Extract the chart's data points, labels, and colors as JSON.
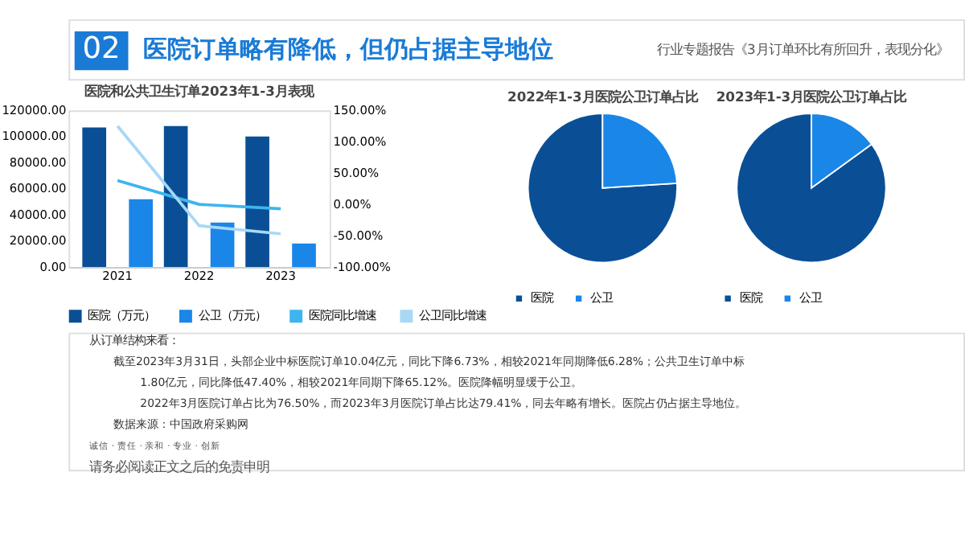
{
  "chart_data": [
    {
      "type": "bar",
      "title": "医院和公共卫生订单2023年1-3月表现",
      "categories": [
        "2021",
        "2022",
        "2023"
      ],
      "series": [
        {
          "name": "医院（万元）",
          "color": "#0a4f96",
          "values": [
            107000,
            108000,
            100000
          ]
        },
        {
          "name": "公卫（万元）",
          "color": "#1a86e8",
          "values": [
            52000,
            34000,
            18000
          ]
        },
        {
          "name": "医院同比增速",
          "color": "#3db5ee",
          "type": "line",
          "axis": "y2",
          "values": [
            38,
            0,
            -7
          ]
        },
        {
          "name": "公卫同比增速",
          "color": "#a8d8f6",
          "type": "line",
          "axis": "y2",
          "values": [
            125,
            -34,
            -47
          ]
        }
      ],
      "ylim": [
        0,
        120000
      ],
      "yticks": [
        {
          "value": 0,
          "label": "0.00"
        },
        {
          "value": 20000,
          "label": "20000.00"
        },
        {
          "value": 40000,
          "label": "40000.00"
        },
        {
          "value": 60000,
          "label": "60000.00"
        },
        {
          "value": 80000,
          "label": "80000.00"
        },
        {
          "value": 100000,
          "label": "100000.00"
        },
        {
          "value": 120000,
          "label": "120000.00"
        }
      ],
      "y2lim": [
        -100,
        150
      ],
      "y2ticks": [
        {
          "value": -100,
          "label": "-100.00%"
        },
        {
          "value": -50,
          "label": "-50.00%"
        },
        {
          "value": 0,
          "label": "0.00%"
        },
        {
          "value": 50,
          "label": "50.00%"
        },
        {
          "value": 100,
          "label": "100.00%"
        },
        {
          "value": 150,
          "label": "150.00%"
        }
      ],
      "legend": "bottom",
      "grid": false,
      "annotations": [
        "02",
        "医院订单略有降低，但仍占据主导地位",
        "行业专题报告《3月订单环比有所回升，表现分化》",
        "从订单结构来看：",
        "截至2023年3月31日，头部企业中标医院订单10.04亿元，同比下降6.73%，相较2021年同期降低6.28%；公共卫生订单中标",
        "1.80亿元，同比降低47.40%，相较2021年同期下降65.12%。医院降幅明显缓于公卫。",
        "2022年3月医院订单占比为76.50%，而2023年3月医院订单占比达79.41%，同去年略有增长。医院占仍占据主导地位。",
        "数据来源：中国政府采购网",
        "诚信 · 责任 · 亲和 · 专业 · 创新",
        "请务必阅读正文之后的免责申明"
      ]
    },
    {
      "type": "pie",
      "title": "2022年1-3月医院公卫订单占比",
      "categories": [
        "医院",
        "公卫"
      ],
      "values": [
        76,
        24
      ],
      "colors": [
        "#0a4f96",
        "#1a86e8"
      ],
      "legend": "bottom"
    },
    {
      "type": "pie",
      "title": "2023年1-3月医院公卫订单占比",
      "categories": [
        "医院",
        "公卫"
      ],
      "values": [
        85,
        15
      ],
      "colors": [
        "#0a4f96",
        "#1a86e8"
      ],
      "legend": "bottom"
    }
  ]
}
